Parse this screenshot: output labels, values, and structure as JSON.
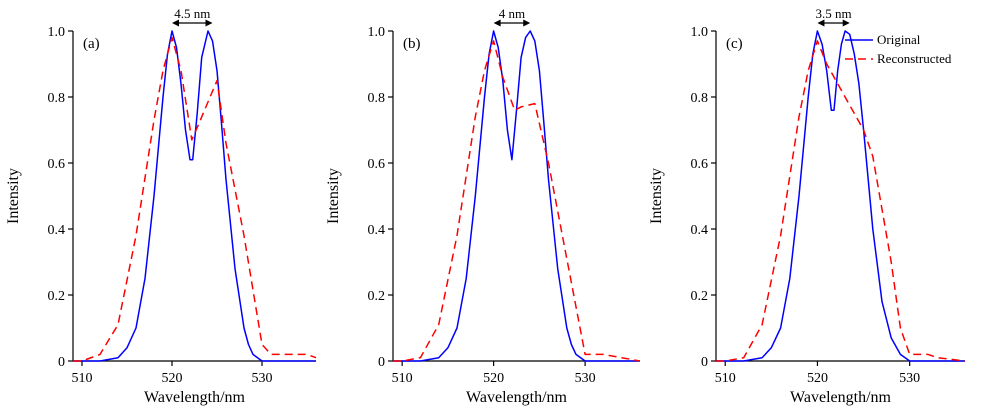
{
  "chart_data": [
    {
      "type": "line",
      "panel_label": "(a)",
      "annotation": "4.5 nm",
      "annotation_range": [
        520,
        524.5
      ],
      "xlabel": "Wavelength/nm",
      "ylabel": "Intensity",
      "xlim": [
        509,
        536
      ],
      "ylim": [
        0,
        1.0
      ],
      "xticks": [
        510,
        520,
        530
      ],
      "xtick_labels": [
        "510",
        "520",
        "530"
      ],
      "yticks": [
        0,
        0.2,
        0.4,
        0.6,
        0.8,
        1.0
      ],
      "ytick_labels": [
        "0",
        "0.2",
        "0.4",
        "0.6",
        "0.8",
        "1.0"
      ],
      "grid": false,
      "series": [
        {
          "name": "Original",
          "color": "#0000ff",
          "style": "solid",
          "x": [
            509,
            512,
            514,
            515,
            516,
            517,
            518,
            519,
            519.5,
            520,
            520.5,
            521,
            521.5,
            522,
            522.3,
            522.8,
            523.3,
            524,
            524.5,
            525,
            525.5,
            526,
            527,
            528,
            528.5,
            529,
            530,
            531,
            536
          ],
          "y": [
            0,
            0,
            0.01,
            0.04,
            0.1,
            0.25,
            0.5,
            0.8,
            0.93,
            1.0,
            0.95,
            0.84,
            0.7,
            0.61,
            0.61,
            0.75,
            0.92,
            1.0,
            0.97,
            0.88,
            0.72,
            0.55,
            0.28,
            0.1,
            0.05,
            0.02,
            0,
            0,
            0
          ]
        },
        {
          "name": "Reconstructed",
          "color": "#ff0000",
          "style": "dashed",
          "x": [
            509,
            510,
            512,
            514,
            516,
            518,
            519,
            520,
            521,
            522.2,
            523,
            525,
            526,
            528,
            530,
            531,
            533,
            535,
            536
          ],
          "y": [
            0,
            0,
            0.02,
            0.11,
            0.38,
            0.73,
            0.88,
            0.98,
            0.88,
            0.67,
            0.72,
            0.85,
            0.66,
            0.38,
            0.05,
            0.02,
            0.02,
            0.02,
            0.01
          ]
        }
      ]
    },
    {
      "type": "line",
      "panel_label": "(b)",
      "annotation": "4 nm",
      "annotation_range": [
        520,
        524
      ],
      "xlabel": "Wavelength/nm",
      "ylabel": "Intensity",
      "xlim": [
        509,
        536
      ],
      "ylim": [
        0,
        1.0
      ],
      "xticks": [
        510,
        520,
        530
      ],
      "xtick_labels": [
        "510",
        "520",
        "530"
      ],
      "yticks": [
        0,
        0.2,
        0.4,
        0.6,
        0.8,
        1.0
      ],
      "ytick_labels": [
        "0",
        "0.2",
        "0.4",
        "0.6",
        "0.8",
        "1.0"
      ],
      "grid": false,
      "series": [
        {
          "name": "Original",
          "color": "#0000ff",
          "style": "solid",
          "x": [
            509,
            512,
            514,
            515,
            516,
            517,
            518,
            519,
            519.5,
            520,
            520.5,
            521,
            521.5,
            522,
            522.5,
            523,
            523.5,
            524,
            524.5,
            525,
            525.5,
            526,
            527,
            528,
            528.5,
            529,
            530,
            531,
            536
          ],
          "y": [
            0,
            0,
            0.01,
            0.04,
            0.1,
            0.25,
            0.5,
            0.8,
            0.93,
            1.0,
            0.95,
            0.85,
            0.7,
            0.61,
            0.76,
            0.92,
            0.98,
            1.0,
            0.97,
            0.88,
            0.72,
            0.55,
            0.28,
            0.1,
            0.05,
            0.02,
            0,
            0,
            0
          ]
        },
        {
          "name": "Reconstructed",
          "color": "#ff0000",
          "style": "dashed",
          "x": [
            509,
            510,
            512,
            514,
            516,
            518,
            519,
            520,
            521,
            522.3,
            523,
            524.5,
            526,
            528,
            530,
            532,
            534,
            536
          ],
          "y": [
            0,
            0,
            0.01,
            0.11,
            0.38,
            0.74,
            0.88,
            0.97,
            0.86,
            0.76,
            0.77,
            0.78,
            0.6,
            0.31,
            0.02,
            0.02,
            0.01,
            0
          ]
        }
      ]
    },
    {
      "type": "line",
      "panel_label": "(c)",
      "annotation": "3.5 nm",
      "annotation_range": [
        520,
        523.5
      ],
      "xlabel": "Wavelength/nm",
      "ylabel": "Intensity",
      "xlim": [
        509,
        536
      ],
      "ylim": [
        0,
        1.0
      ],
      "xticks": [
        510,
        520,
        530
      ],
      "xtick_labels": [
        "510",
        "520",
        "530"
      ],
      "yticks": [
        0,
        0.2,
        0.4,
        0.6,
        0.8,
        1.0
      ],
      "ytick_labels": [
        "0",
        "0.2",
        "0.4",
        "0.6",
        "0.8",
        "1.0"
      ],
      "grid": false,
      "legend_position": "top-right",
      "series": [
        {
          "name": "Original",
          "color": "#0000ff",
          "style": "solid",
          "x": [
            509,
            512,
            514,
            515,
            516,
            517,
            518,
            519,
            519.5,
            520,
            520.5,
            521,
            521.5,
            521.8,
            522.2,
            522.6,
            523,
            523.5,
            524,
            524.5,
            525,
            525.5,
            526,
            527,
            528,
            529,
            530,
            536
          ],
          "y": [
            0,
            0,
            0.01,
            0.04,
            0.1,
            0.25,
            0.5,
            0.8,
            0.93,
            1.0,
            0.96,
            0.88,
            0.76,
            0.76,
            0.88,
            0.96,
            1.0,
            0.99,
            0.93,
            0.84,
            0.7,
            0.55,
            0.4,
            0.18,
            0.07,
            0.02,
            0,
            0
          ]
        },
        {
          "name": "Reconstructed",
          "color": "#ff0000",
          "style": "dashed",
          "x": [
            509,
            510,
            512,
            514,
            516,
            518,
            519,
            520,
            521,
            523,
            525,
            526,
            527,
            528,
            529,
            530,
            532,
            533,
            536
          ],
          "y": [
            0,
            0,
            0.01,
            0.11,
            0.38,
            0.74,
            0.88,
            0.97,
            0.9,
            0.8,
            0.7,
            0.62,
            0.46,
            0.3,
            0.1,
            0.02,
            0.02,
            0.01,
            0
          ]
        }
      ]
    }
  ]
}
